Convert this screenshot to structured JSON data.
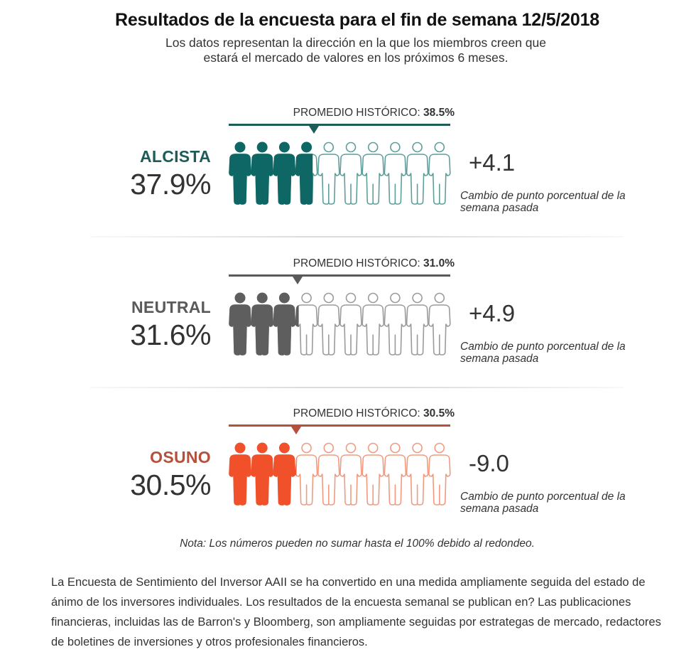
{
  "header": {
    "title": "Resultados de la encuesta para el fin de semana 12/5/2018",
    "subtitle_line1": "Los datos representan la dirección en la que los miembros creen que",
    "subtitle_line2": "estará el mercado de valores en los próximos 6 meses."
  },
  "chart_data": {
    "type": "pictogram",
    "title": "Resultados de la encuesta para el fin de semana 12/5/2018",
    "icon_count": 10,
    "icon": "person-icon",
    "avg_prefix": "PROMEDIO HISTÓRICO: ",
    "change_caption": "Cambio de punto porcentual de la semana pasada",
    "series": [
      {
        "name": "ALCISTA",
        "value": 37.9,
        "value_label": "37.9%",
        "historical_avg": 38.5,
        "historical_avg_label": "38.5%",
        "change": 4.1,
        "change_label": "+4.1",
        "color": "#0e6764",
        "outline_color": "#5f9e9b",
        "label_color": "#1d5c57",
        "bar_color": "#1d5c57"
      },
      {
        "name": "NEUTRAL",
        "value": 31.6,
        "value_label": "31.6%",
        "historical_avg": 31.0,
        "historical_avg_label": "31.0%",
        "change": 4.9,
        "change_label": "+4.9",
        "color": "#5e5e5e",
        "outline_color": "#9b9b9b",
        "label_color": "#5a5a5a",
        "bar_color": "#5a5a5a"
      },
      {
        "name": "OSUNO",
        "value": 30.5,
        "value_label": "30.5%",
        "historical_avg": 30.5,
        "historical_avg_label": "30.5%",
        "change": -9.0,
        "change_label": "-9.0",
        "color": "#f0512a",
        "outline_color": "#f29a80",
        "label_color": "#b5503b",
        "bar_color": "#b5503b"
      }
    ]
  },
  "note": "Nota: Los números pueden no sumar hasta el 100% debido al redondeo.",
  "body_text": "La Encuesta de Sentimiento del Inversor AAII se ha convertido en una medida ampliamente seguida del estado de ánimo de los inversores individuales. Los resultados de la encuesta semanal se publican en? Las publicaciones financieras, incluidas las de Barron's y Bloomberg, son ampliamente seguidas por estrategas de mercado, redactores de boletines de inversiones y otros profesionales financieros."
}
